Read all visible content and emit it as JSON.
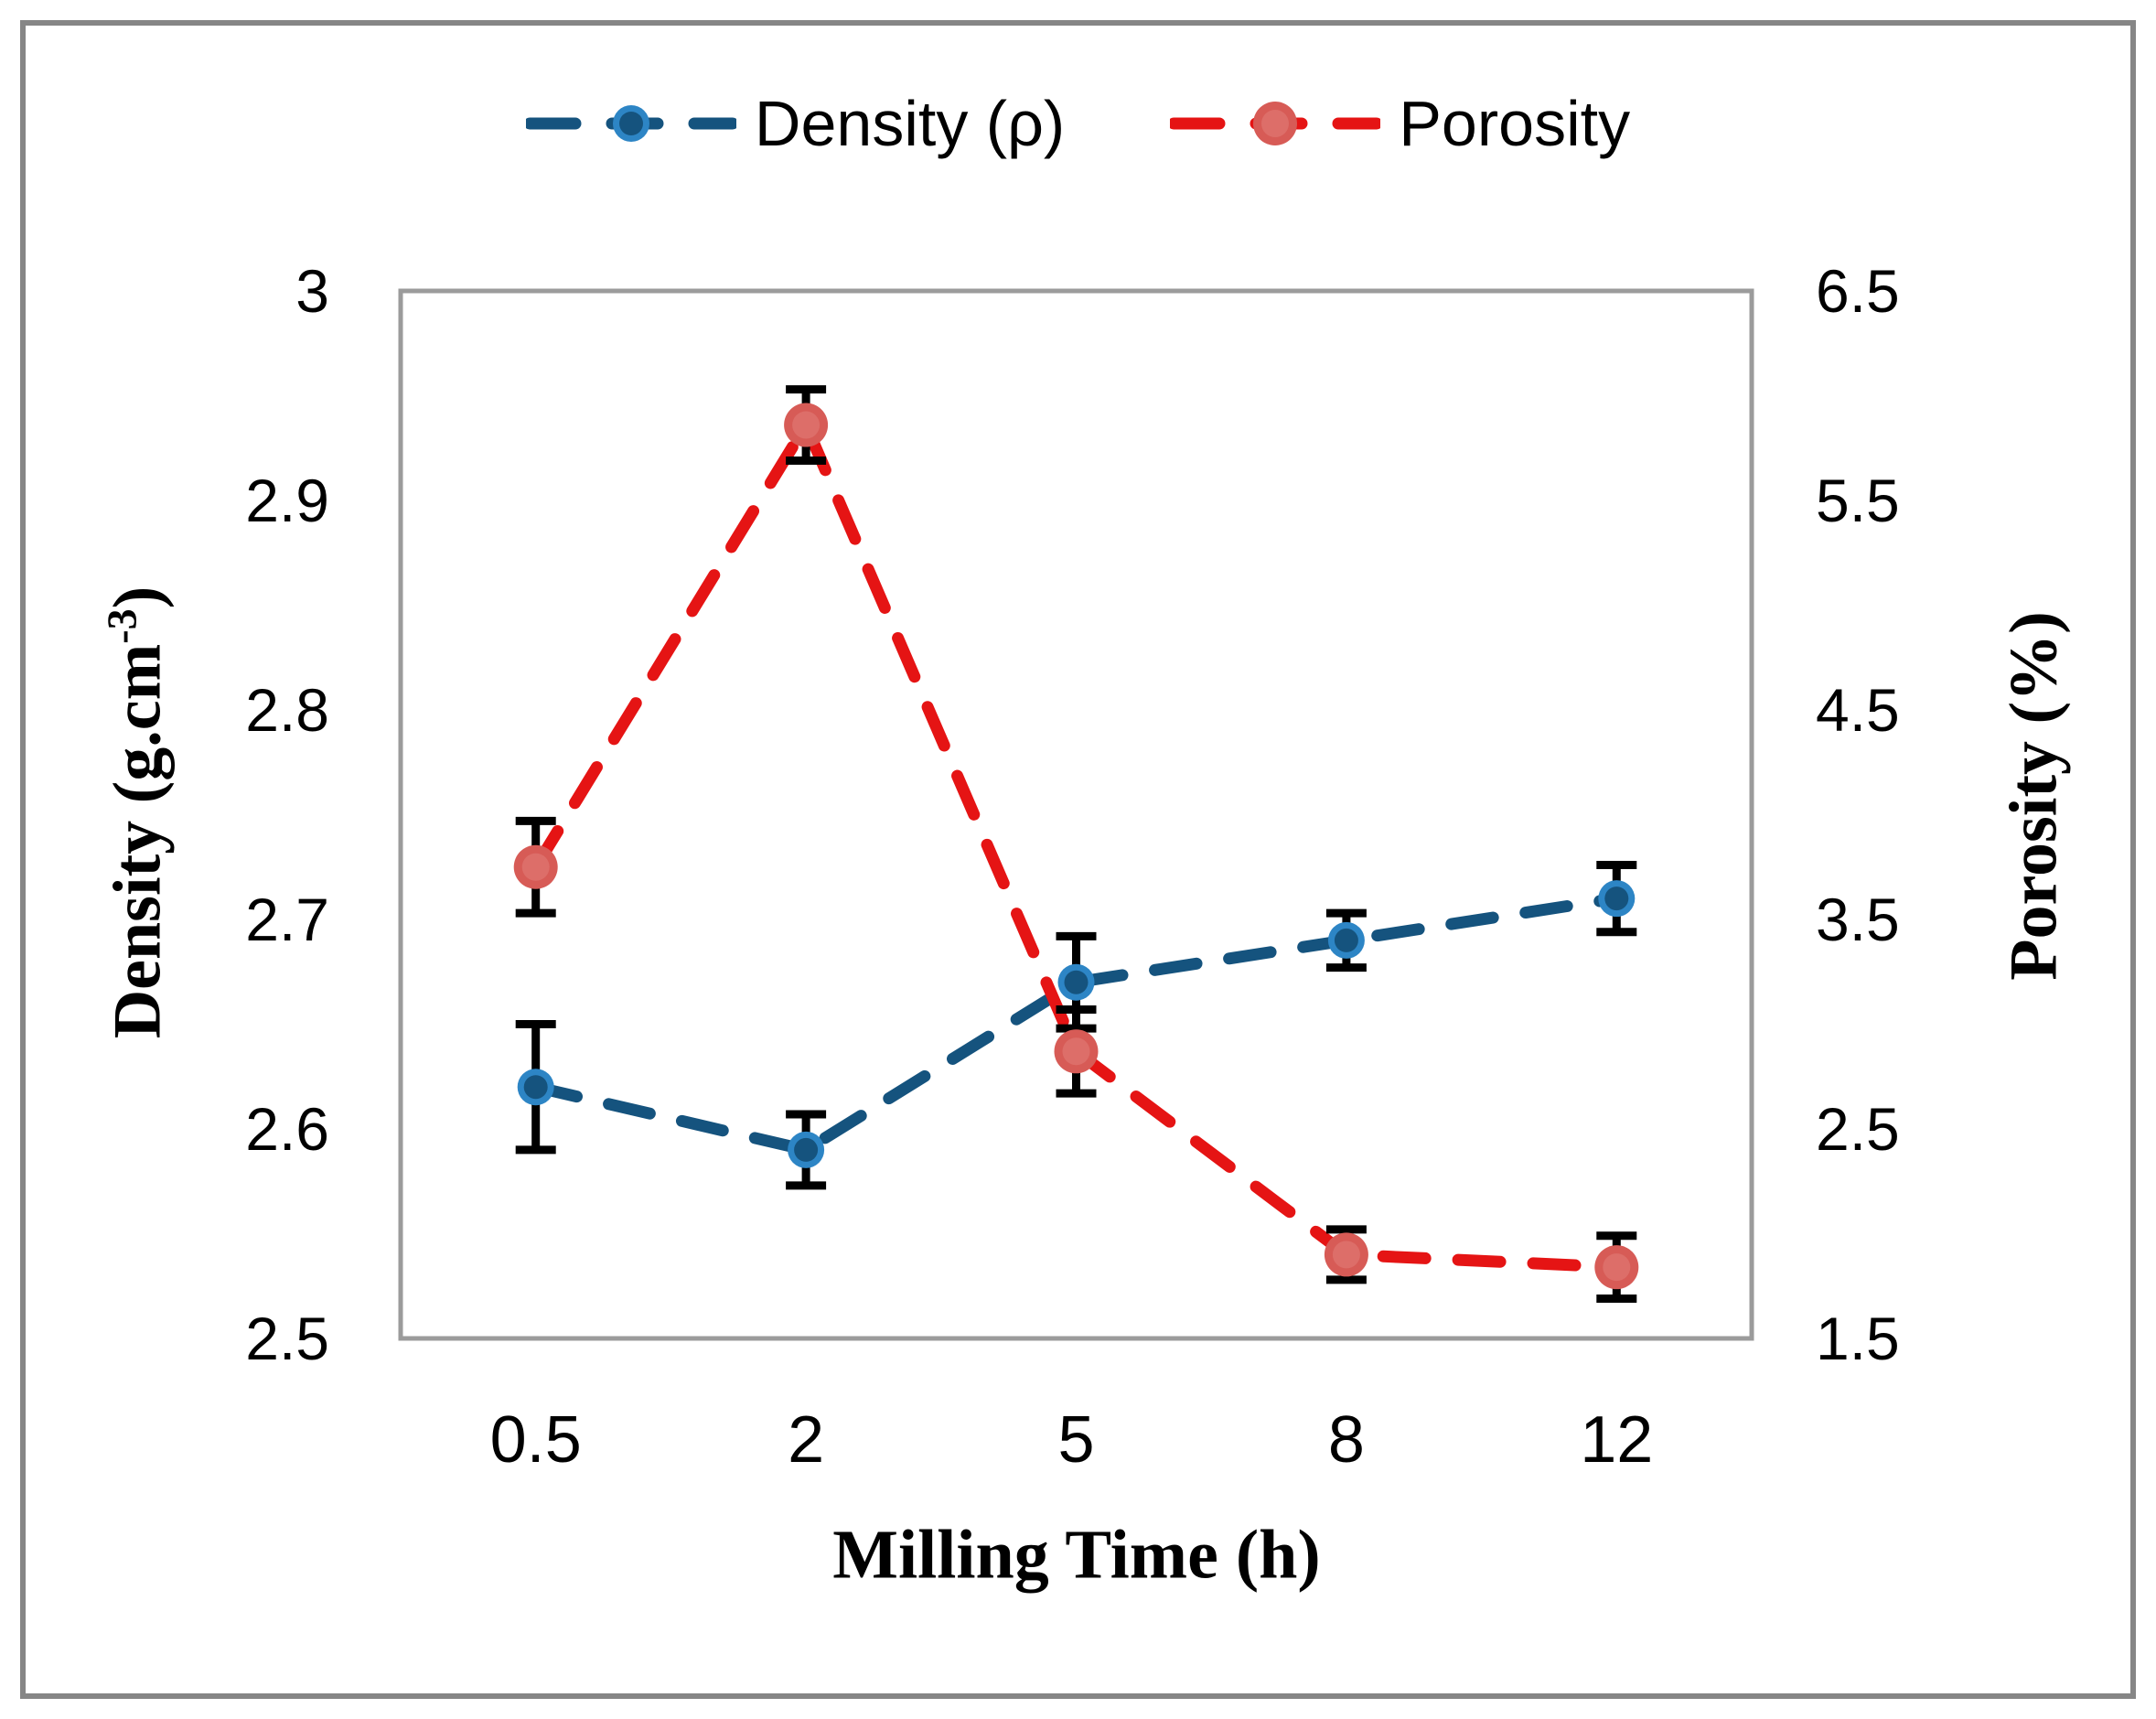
{
  "figure": {
    "background": "#FFFFFF",
    "outer_border_color": "#868686",
    "plot_border_color": "#9B9B9B"
  },
  "legend": {
    "items": [
      {
        "key": "density",
        "label": "Density (ρ)"
      },
      {
        "key": "porosity",
        "label": "Porosity"
      }
    ]
  },
  "chart_data": {
    "type": "line",
    "categories": [
      "0.5",
      "2",
      "5",
      "8",
      "12"
    ],
    "xlabel": "Milling Time (h)",
    "grid": false,
    "legend_position": "top-center",
    "axis_left": {
      "title_prefix": "Density (g.cm",
      "title_sup": "-3",
      "title_suffix": ")",
      "min": 2.5,
      "max": 3.0,
      "ticks": [
        "3",
        "2.9",
        "2.8",
        "2.7",
        "2.6",
        "2.5"
      ],
      "tick_values": [
        3,
        2.9,
        2.8,
        2.7,
        2.6,
        2.5
      ]
    },
    "axis_right": {
      "title": "Porosity (%)",
      "min": 1.5,
      "max": 6.5,
      "ticks": [
        "6.5",
        "5.5",
        "4.5",
        "3.5",
        "2.5",
        "1.5"
      ],
      "tick_values": [
        6.5,
        5.5,
        4.5,
        3.5,
        2.5,
        1.5
      ]
    },
    "series": [
      {
        "key": "density",
        "name": "Density (ρ)",
        "axis": "left",
        "values": [
          2.62,
          2.59,
          2.67,
          2.69,
          2.71
        ],
        "errors": [
          0.03,
          0.017,
          0.022,
          0.013,
          0.016
        ],
        "line_color": "#15537E",
        "line_style": "dashed",
        "marker": {
          "outer_r": 20,
          "outer_color": "#2D85C5",
          "inner_r": 13,
          "inner_color": "#15537E"
        }
      },
      {
        "key": "porosity",
        "name": "Porosity",
        "axis": "right",
        "values": [
          3.75,
          5.86,
          2.87,
          1.9,
          1.84
        ],
        "errors": [
          0.22,
          0.17,
          0.2,
          0.12,
          0.15
        ],
        "line_color": "#E51414",
        "line_style": "dashed",
        "marker": {
          "outer_r": 24,
          "outer_color": "#D75B56",
          "inner_r": 15,
          "inner_color": "#DD6E69"
        }
      }
    ],
    "error_bar_color": "#000000"
  }
}
